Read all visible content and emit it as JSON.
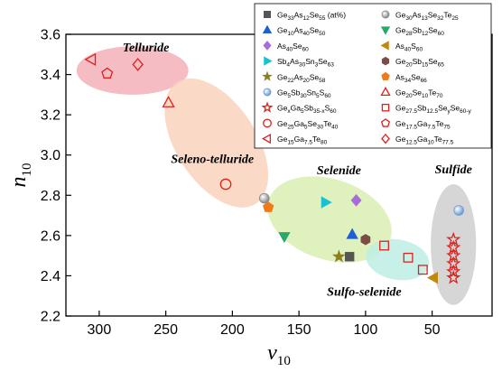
{
  "chart_data": {
    "type": "scatter",
    "xlabel": "ν10",
    "ylabel": "n10",
    "xlabel_parts": {
      "main": "ν",
      "sub": "10"
    },
    "ylabel_parts": {
      "main": "n",
      "sub": "10"
    },
    "xlim": [
      325,
      5
    ],
    "ylim": [
      2.2,
      3.6
    ],
    "x_ticks": [
      300,
      250,
      200,
      150,
      100,
      50
    ],
    "y_ticks": [
      2.2,
      2.4,
      2.6,
      2.8,
      3.0,
      3.2,
      3.4,
      3.6
    ],
    "legend_position": "top-right",
    "regions": [
      {
        "name": "Telluride",
        "label": "Telluride",
        "color": "#f4b0b8",
        "cx": 275,
        "cy": 3.42,
        "rx": 42,
        "ry": 0.12,
        "angle": 0,
        "label_x": 265,
        "label_y": 3.515
      },
      {
        "name": "Seleno-telluride",
        "label": "Seleno-telluride",
        "color": "#f9d2bc",
        "cx": 212,
        "cy": 3.06,
        "rx": 30,
        "ry": 0.36,
        "angle": -33,
        "label_x": 215,
        "label_y": 2.96
      },
      {
        "name": "Selenide",
        "label": "Selenide",
        "color": "#d9eeb0",
        "cx": 127,
        "cy": 2.68,
        "rx": 48,
        "ry": 0.2,
        "angle": 18,
        "label_x": 120,
        "label_y": 2.905
      },
      {
        "name": "Sulfo-selenide",
        "label": "Sulfo-selenide",
        "color": "#bdeee4",
        "cx": 76,
        "cy": 2.48,
        "rx": 24,
        "ry": 0.1,
        "angle": 10,
        "label_x": 101,
        "label_y": 2.3
      },
      {
        "name": "Sulfide",
        "label": "Sulfide",
        "color": "#cfcfcf",
        "cx": 34,
        "cy": 2.555,
        "rx": 17,
        "ry": 0.3,
        "angle": 0,
        "label_x": 34,
        "label_y": 2.91
      }
    ],
    "series": [
      {
        "name": "Ge33As12Se55 (at%)",
        "marker": "square",
        "color": "#555555",
        "filled": true,
        "points": [
          [
            112,
            2.495
          ]
        ]
      },
      {
        "name": "Ge30As13Se32Te25",
        "marker": "sphere",
        "color": "#888888",
        "filled": true,
        "points": [
          [
            176,
            2.785
          ]
        ]
      },
      {
        "name": "Ge10As40Se50",
        "marker": "triangle-up",
        "color": "#1f5fd6",
        "filled": true,
        "points": [
          [
            110,
            2.605
          ]
        ]
      },
      {
        "name": "Ge28Sb12Se60",
        "marker": "triangle-down",
        "color": "#2aa86a",
        "filled": true,
        "points": [
          [
            161,
            2.595
          ]
        ]
      },
      {
        "name": "As40Se60",
        "marker": "diamond",
        "color": "#a66cd8",
        "filled": true,
        "points": [
          [
            107,
            2.775
          ]
        ]
      },
      {
        "name": "As40S60",
        "marker": "triangle-left",
        "color": "#c08a10",
        "filled": true,
        "points": [
          [
            49,
            2.39
          ]
        ]
      },
      {
        "name": "Sb4As30Sn3Se63",
        "marker": "triangle-right",
        "color": "#19c2d2",
        "filled": true,
        "points": [
          [
            130,
            2.765
          ]
        ]
      },
      {
        "name": "Ge20Sb15Se65",
        "marker": "hexagon",
        "color": "#7a4e45",
        "filled": true,
        "points": [
          [
            100,
            2.58
          ]
        ]
      },
      {
        "name": "Ge22As20Se58",
        "marker": "star",
        "color": "#8a8020",
        "filled": true,
        "points": [
          [
            120,
            2.495
          ]
        ]
      },
      {
        "name": "As34Se66",
        "marker": "pentagon",
        "color": "#ef7a1a",
        "filled": true,
        "points": [
          [
            173,
            2.74
          ]
        ]
      },
      {
        "name": "Ge5Sb30Sn5S60",
        "marker": "sphere",
        "color": "#6a9ad4",
        "filled": true,
        "points": [
          [
            30,
            2.725
          ]
        ]
      },
      {
        "name": "Ge20Se10Te70",
        "marker": "triangle-up",
        "color": "#e0201b",
        "filled": false,
        "points": [
          [
            248,
            3.26
          ]
        ]
      },
      {
        "name": "GexGa5Sb35-xS60",
        "marker": "star",
        "color": "#e0201b",
        "filled": false,
        "points": [
          [
            34,
            2.58
          ],
          [
            34,
            2.54
          ],
          [
            34,
            2.5
          ],
          [
            34,
            2.46
          ],
          [
            34,
            2.42
          ],
          [
            34,
            2.39
          ]
        ]
      },
      {
        "name": "Ge27.5Sb12.5SeySe60-y",
        "marker": "square",
        "color": "#e0201b",
        "filled": false,
        "points": [
          [
            86,
            2.55
          ],
          [
            68,
            2.49
          ],
          [
            57,
            2.43
          ]
        ]
      },
      {
        "name": "Ge25Ga5Se30Te40",
        "marker": "circle",
        "color": "#e0201b",
        "filled": false,
        "points": [
          [
            205,
            2.855
          ]
        ]
      },
      {
        "name": "Ge17.5Ga7.5Te75",
        "marker": "pentagon",
        "color": "#e0201b",
        "filled": false,
        "points": [
          [
            294,
            3.405
          ]
        ]
      },
      {
        "name": "Ge15Ga7.5Te80",
        "marker": "triangle-left",
        "color": "#e0201b",
        "filled": false,
        "points": [
          [
            306,
            3.475
          ]
        ]
      },
      {
        "name": "Ge12.5Ga10Te77.5",
        "marker": "diamond",
        "color": "#e0201b",
        "filled": false,
        "points": [
          [
            271,
            3.45
          ]
        ]
      }
    ],
    "legend_items": [
      {
        "parts": [
          [
            "Ge",
            ""
          ],
          [
            "33",
            "sub"
          ],
          [
            "As",
            ""
          ],
          [
            "12",
            "sub"
          ],
          [
            "Se",
            ""
          ],
          [
            "55",
            "sub"
          ],
          [
            " (at%)",
            ""
          ]
        ],
        "series": 0
      },
      {
        "parts": [
          [
            "Ge",
            ""
          ],
          [
            "30",
            "sub"
          ],
          [
            "As",
            ""
          ],
          [
            "13",
            "sub"
          ],
          [
            "Se",
            ""
          ],
          [
            "32",
            "sub"
          ],
          [
            "Te",
            ""
          ],
          [
            "25",
            "sub"
          ]
        ],
        "series": 1
      },
      {
        "parts": [
          [
            "Ge",
            ""
          ],
          [
            "10",
            "sub"
          ],
          [
            "As",
            ""
          ],
          [
            "40",
            "sub"
          ],
          [
            "Se",
            ""
          ],
          [
            "50",
            "sub"
          ]
        ],
        "series": 2
      },
      {
        "parts": [
          [
            "Ge",
            ""
          ],
          [
            "28",
            "sub"
          ],
          [
            "Sb",
            ""
          ],
          [
            "12",
            "sub"
          ],
          [
            "Se",
            ""
          ],
          [
            "60",
            "sub"
          ]
        ],
        "series": 3
      },
      {
        "parts": [
          [
            "As",
            ""
          ],
          [
            "40",
            "sub"
          ],
          [
            "Se",
            ""
          ],
          [
            "60",
            "sub"
          ]
        ],
        "series": 4
      },
      {
        "parts": [
          [
            "As",
            ""
          ],
          [
            "40",
            "sub"
          ],
          [
            "S",
            ""
          ],
          [
            "60",
            "sub"
          ]
        ],
        "series": 5
      },
      {
        "parts": [
          [
            "Sb",
            ""
          ],
          [
            "4",
            "sub"
          ],
          [
            "As",
            ""
          ],
          [
            "30",
            "sub"
          ],
          [
            "Sn",
            ""
          ],
          [
            "3",
            "sub"
          ],
          [
            "Se",
            ""
          ],
          [
            "63",
            "sub"
          ]
        ],
        "series": 6
      },
      {
        "parts": [
          [
            "Ge",
            ""
          ],
          [
            "20",
            "sub"
          ],
          [
            "Sb",
            ""
          ],
          [
            "15",
            "sub"
          ],
          [
            "Se",
            ""
          ],
          [
            "65",
            "sub"
          ]
        ],
        "series": 7
      },
      {
        "parts": [
          [
            "Ge",
            ""
          ],
          [
            "22",
            "sub"
          ],
          [
            "As",
            ""
          ],
          [
            "20",
            "sub"
          ],
          [
            "Se",
            ""
          ],
          [
            "58",
            "sub"
          ]
        ],
        "series": 8
      },
      {
        "parts": [
          [
            "As",
            ""
          ],
          [
            "34",
            "sub"
          ],
          [
            "Se",
            ""
          ],
          [
            "66",
            "sub"
          ]
        ],
        "series": 9
      },
      {
        "parts": [
          [
            "Ge",
            ""
          ],
          [
            "5",
            "sub"
          ],
          [
            "Sb",
            ""
          ],
          [
            "30",
            "sub"
          ],
          [
            "Sn",
            ""
          ],
          [
            "5",
            "sub"
          ],
          [
            "S",
            ""
          ],
          [
            "60",
            "sub"
          ]
        ],
        "series": 10
      },
      {
        "parts": [
          [
            "Ge",
            ""
          ],
          [
            "20",
            "sub"
          ],
          [
            "Se",
            ""
          ],
          [
            "10",
            "sub"
          ],
          [
            "Te",
            ""
          ],
          [
            "70",
            "sub"
          ]
        ],
        "series": 11
      },
      {
        "parts": [
          [
            "Ge",
            ""
          ],
          [
            "x",
            "sub"
          ],
          [
            "Ga",
            ""
          ],
          [
            "5",
            "sub"
          ],
          [
            "Sb",
            ""
          ],
          [
            "35-x",
            "sub"
          ],
          [
            "S",
            ""
          ],
          [
            "60",
            "sub"
          ]
        ],
        "series": 12
      },
      {
        "parts": [
          [
            "Ge",
            ""
          ],
          [
            "27.5",
            "sub"
          ],
          [
            "Sb",
            ""
          ],
          [
            "12.5",
            "sub"
          ],
          [
            "Se",
            ""
          ],
          [
            "y",
            "sub"
          ],
          [
            "Se",
            ""
          ],
          [
            "60-y",
            "sub"
          ]
        ],
        "series": 13
      },
      {
        "parts": [
          [
            "Ge",
            ""
          ],
          [
            "25",
            "sub"
          ],
          [
            "Ga",
            ""
          ],
          [
            "5",
            "sub"
          ],
          [
            "Se",
            ""
          ],
          [
            "30",
            "sub"
          ],
          [
            "Te",
            ""
          ],
          [
            "40",
            "sub"
          ]
        ],
        "series": 14
      },
      {
        "parts": [
          [
            "Ge",
            ""
          ],
          [
            "17.5",
            "sub"
          ],
          [
            "Ga",
            ""
          ],
          [
            "7.5",
            "sub"
          ],
          [
            "Te",
            ""
          ],
          [
            "75",
            "sub"
          ]
        ],
        "series": 15
      },
      {
        "parts": [
          [
            "Ge",
            ""
          ],
          [
            "15",
            "sub"
          ],
          [
            "Ga",
            ""
          ],
          [
            "7.5",
            "sub"
          ],
          [
            "Te",
            ""
          ],
          [
            "80",
            "sub"
          ]
        ],
        "series": 16
      },
      {
        "parts": [
          [
            "Ge",
            ""
          ],
          [
            "12.5",
            "sub"
          ],
          [
            "Ga",
            ""
          ],
          [
            "10",
            "sub"
          ],
          [
            "Te",
            ""
          ],
          [
            "77.5",
            "sub"
          ]
        ],
        "series": 17
      }
    ]
  }
}
